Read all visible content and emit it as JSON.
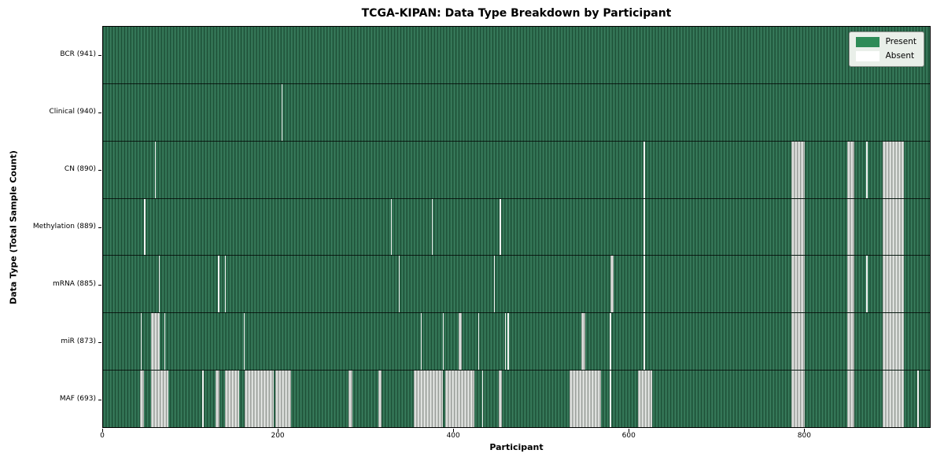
{
  "title": "TCGA-KIPAN: Data Type Breakdown by Participant",
  "legend": {
    "present_label": "Present",
    "absent_label": "Absent"
  },
  "colors": {
    "present": "#2e8b57",
    "present_field_dark": "#1c4c35",
    "present_field_light": "#3f8465",
    "absent": "#ffffff",
    "absent_field_gray": "#8e938e",
    "legend_bg": "#e9efe9"
  },
  "chart_data": {
    "type": "heatmap",
    "title": "TCGA-KIPAN: Data Type Breakdown by Participant",
    "xlabel": "Participant",
    "ylabel": "Data Type (Total Sample Count)",
    "legend_entries": [
      "Present",
      "Absent"
    ],
    "legend_position": "upper right",
    "grid": false,
    "total_participants": 941,
    "x_domain": [
      0,
      944
    ],
    "x_ticks": [
      0,
      200,
      400,
      600,
      800
    ],
    "cell_states": {
      "present": "green",
      "absent": "white"
    },
    "rows": [
      {
        "name": "BCR",
        "label": "BCR (941)",
        "present_count": 941,
        "absent_ranges": []
      },
      {
        "name": "Clinical",
        "label": "Clinical (940)",
        "present_count": 940,
        "absent_ranges": [
          [
            204,
            205
          ]
        ]
      },
      {
        "name": "CN",
        "label": "CN (890)",
        "present_count": 890,
        "absent_ranges": [
          [
            59,
            60
          ],
          [
            617,
            619
          ],
          [
            786,
            801
          ],
          [
            850,
            858
          ],
          [
            871,
            873
          ],
          [
            890,
            914
          ]
        ]
      },
      {
        "name": "Methylation",
        "label": "Methylation (889)",
        "present_count": 889,
        "absent_ranges": [
          [
            47,
            48
          ],
          [
            329,
            330
          ],
          [
            375,
            376
          ],
          [
            453,
            454
          ],
          [
            617,
            619
          ],
          [
            786,
            801
          ],
          [
            850,
            858
          ],
          [
            890,
            914
          ]
        ]
      },
      {
        "name": "mRNA",
        "label": "mRNA (885)",
        "present_count": 885,
        "absent_ranges": [
          [
            64,
            65
          ],
          [
            131,
            133
          ],
          [
            139,
            140
          ],
          [
            338,
            339
          ],
          [
            446,
            447
          ],
          [
            579,
            583
          ],
          [
            617,
            619
          ],
          [
            786,
            801
          ],
          [
            850,
            858
          ],
          [
            871,
            873
          ],
          [
            890,
            914
          ]
        ]
      },
      {
        "name": "miR",
        "label": "miR (873)",
        "present_count": 873,
        "absent_ranges": [
          [
            43,
            44
          ],
          [
            55,
            65
          ],
          [
            70,
            71
          ],
          [
            161,
            162
          ],
          [
            363,
            364
          ],
          [
            388,
            389
          ],
          [
            406,
            410
          ],
          [
            428,
            429
          ],
          [
            459,
            460
          ],
          [
            462,
            463
          ],
          [
            546,
            551
          ],
          [
            578,
            580
          ],
          [
            617,
            619
          ],
          [
            786,
            801
          ],
          [
            850,
            858
          ],
          [
            890,
            914
          ]
        ]
      },
      {
        "name": "MAF",
        "label": "MAF (693)",
        "present_count": 693,
        "absent_ranges": [
          [
            42,
            47
          ],
          [
            55,
            75
          ],
          [
            113,
            115
          ],
          [
            128,
            133
          ],
          [
            139,
            155
          ],
          [
            162,
            195
          ],
          [
            197,
            215
          ],
          [
            280,
            285
          ],
          [
            314,
            318
          ],
          [
            355,
            388
          ],
          [
            391,
            424
          ],
          [
            433,
            434
          ],
          [
            452,
            455
          ],
          [
            533,
            569
          ],
          [
            578,
            580
          ],
          [
            611,
            627
          ],
          [
            786,
            801
          ],
          [
            850,
            858
          ],
          [
            890,
            914
          ],
          [
            930,
            931
          ]
        ]
      }
    ]
  }
}
